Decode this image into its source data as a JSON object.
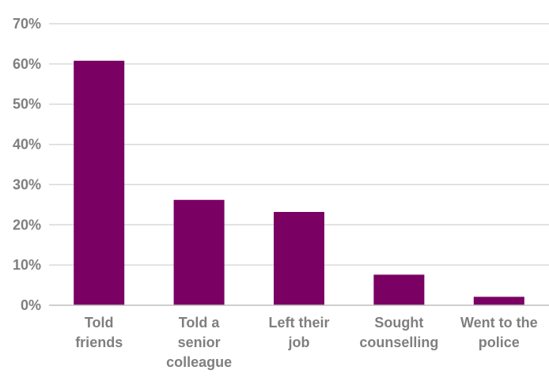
{
  "chart_data": {
    "type": "bar",
    "title": "",
    "xlabel": "",
    "ylabel": "",
    "categories": [
      [
        "Told",
        "friends"
      ],
      [
        "Told a",
        "senior",
        "colleague"
      ],
      [
        "Left their",
        "job"
      ],
      [
        "Sought",
        "counselling"
      ],
      [
        "Went to the",
        "police"
      ]
    ],
    "values": [
      60.8,
      26.2,
      23.2,
      7.6,
      2.1
    ],
    "ylim": [
      0,
      70
    ],
    "yticks": [
      0,
      10,
      20,
      30,
      40,
      50,
      60,
      70
    ],
    "ytick_labels": [
      "0%",
      "10%",
      "20%",
      "30%",
      "40%",
      "50%",
      "60%",
      "70%"
    ],
    "grid": true,
    "bar_color": "#7a0063",
    "tick_color": "#7f7f7f"
  }
}
